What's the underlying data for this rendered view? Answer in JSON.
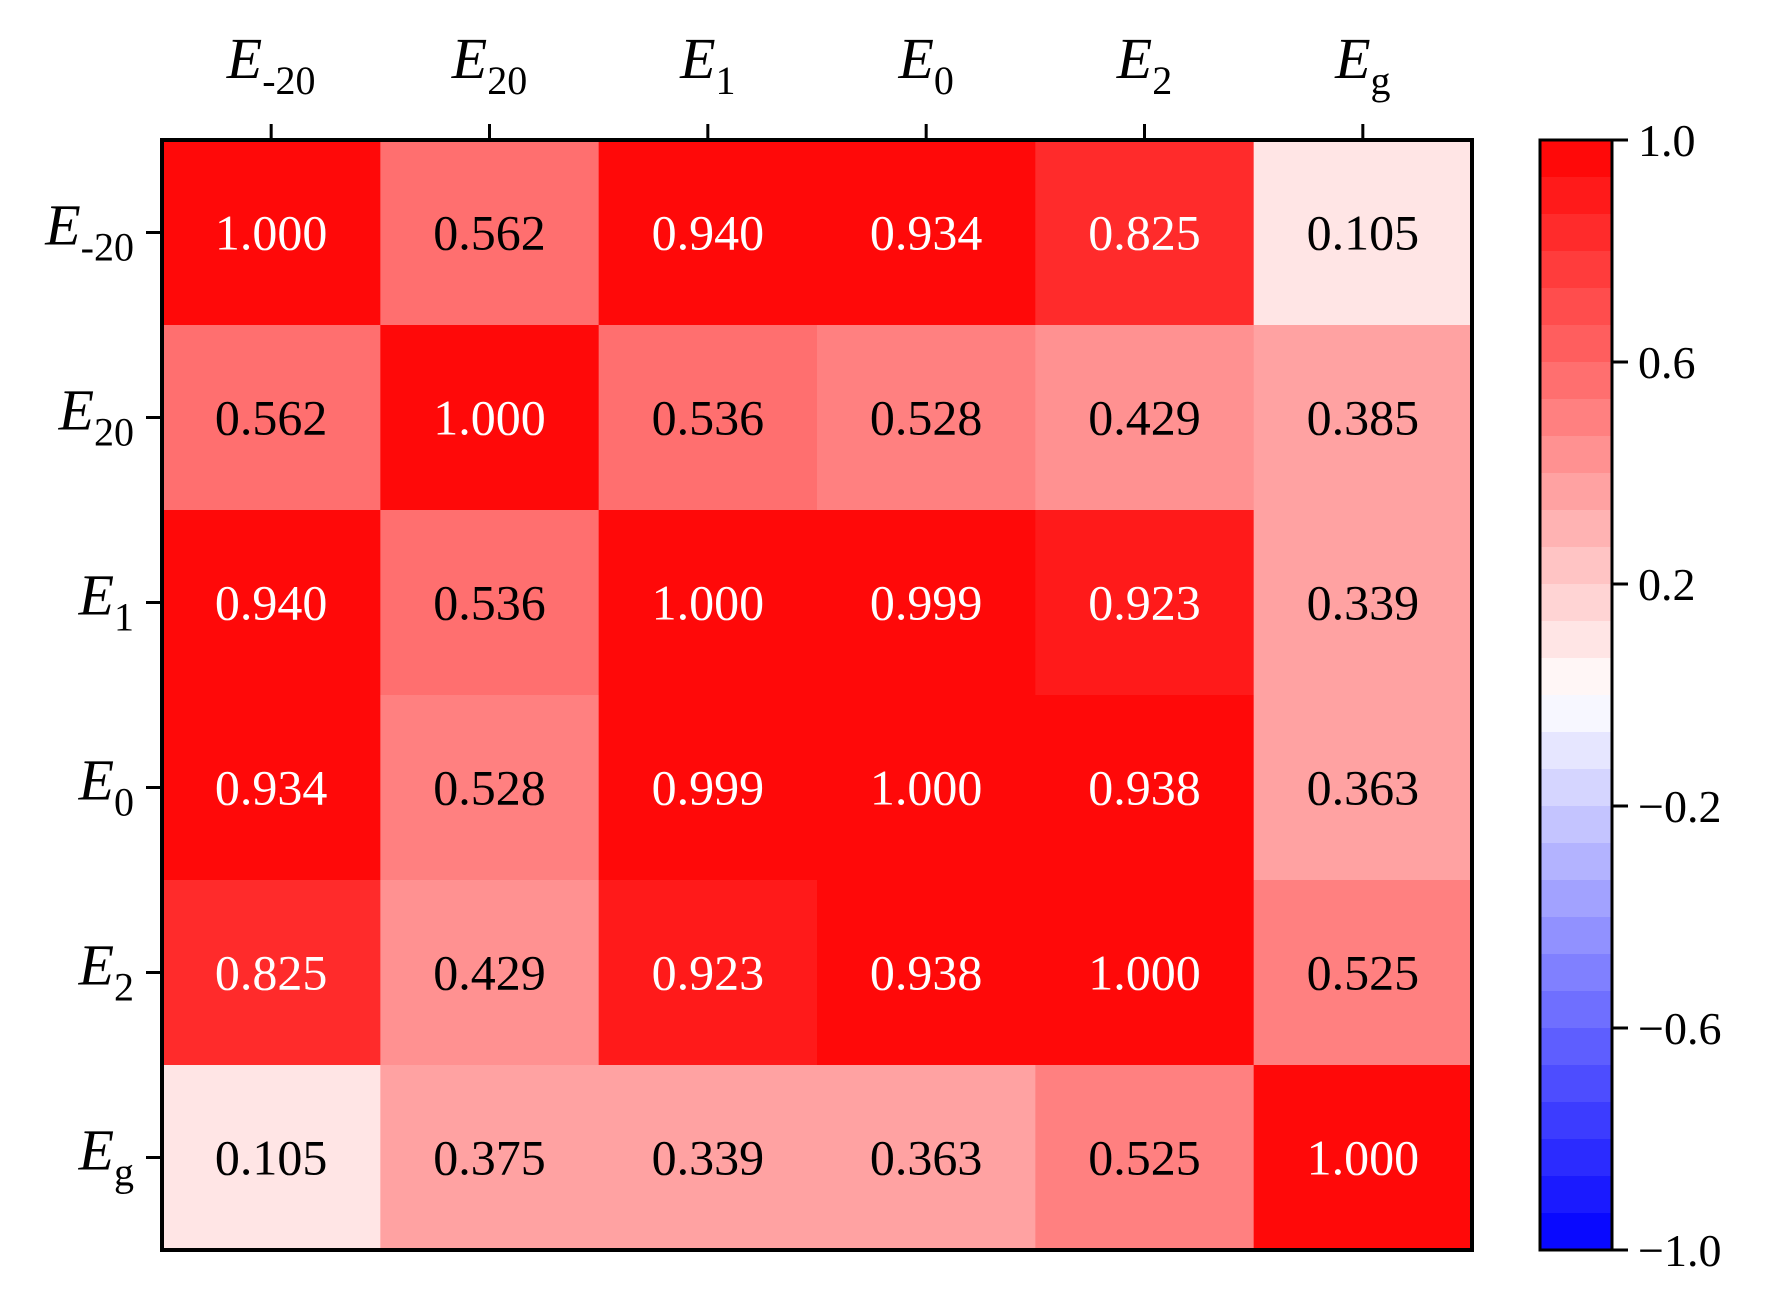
{
  "chart_data": {
    "type": "heatmap",
    "row_labels": [
      {
        "main": "E",
        "sub": "-20"
      },
      {
        "main": "E",
        "sub": "20"
      },
      {
        "main": "E",
        "sub": "1"
      },
      {
        "main": "E",
        "sub": "0"
      },
      {
        "main": "E",
        "sub": "2"
      },
      {
        "main": "E",
        "sub": "g"
      }
    ],
    "col_labels": [
      {
        "main": "E",
        "sub": "-20"
      },
      {
        "main": "E",
        "sub": "20"
      },
      {
        "main": "E",
        "sub": "1"
      },
      {
        "main": "E",
        "sub": "0"
      },
      {
        "main": "E",
        "sub": "2"
      },
      {
        "main": "E",
        "sub": "g"
      }
    ],
    "cell_labels": [
      [
        "1.000",
        "0.562",
        "0.940",
        "0.934",
        "0.825",
        "0.105"
      ],
      [
        "0.562",
        "1.000",
        "0.536",
        "0.528",
        "0.429",
        "0.385"
      ],
      [
        "0.940",
        "0.536",
        "1.000",
        "0.999",
        "0.923",
        "0.339"
      ],
      [
        "0.934",
        "0.528",
        "0.999",
        "1.000",
        "0.938",
        "0.363"
      ],
      [
        "0.825",
        "0.429",
        "0.923",
        "0.938",
        "1.000",
        "0.525"
      ],
      [
        "0.105",
        "0.375",
        "0.339",
        "0.363",
        "0.525",
        "1.000"
      ]
    ],
    "values": [
      [
        1.0,
        0.562,
        0.94,
        0.934,
        0.825,
        0.105
      ],
      [
        0.562,
        1.0,
        0.536,
        0.528,
        0.429,
        0.385
      ],
      [
        0.94,
        0.536,
        1.0,
        0.999,
        0.923,
        0.339
      ],
      [
        0.934,
        0.528,
        0.999,
        1.0,
        0.938,
        0.363
      ],
      [
        0.825,
        0.429,
        0.923,
        0.938,
        1.0,
        0.525
      ],
      [
        0.105,
        0.375,
        0.339,
        0.363,
        0.525,
        1.0
      ]
    ],
    "colorbar": {
      "min": -1.0,
      "max": 1.0,
      "ticks": [
        1.0,
        0.6,
        0.2,
        -0.2,
        -0.6,
        -1.0
      ],
      "tick_labels": [
        "1.0",
        "0.6",
        "0.2",
        "−0.2",
        "−0.6",
        "−1.0"
      ],
      "levels": 30
    },
    "colormap": {
      "low": "#0000ff",
      "mid": "#ffffff",
      "high": "#ff0000"
    },
    "text_light": "#ffffff",
    "text_dark": "#000000",
    "light_text_threshold": 0.8
  }
}
